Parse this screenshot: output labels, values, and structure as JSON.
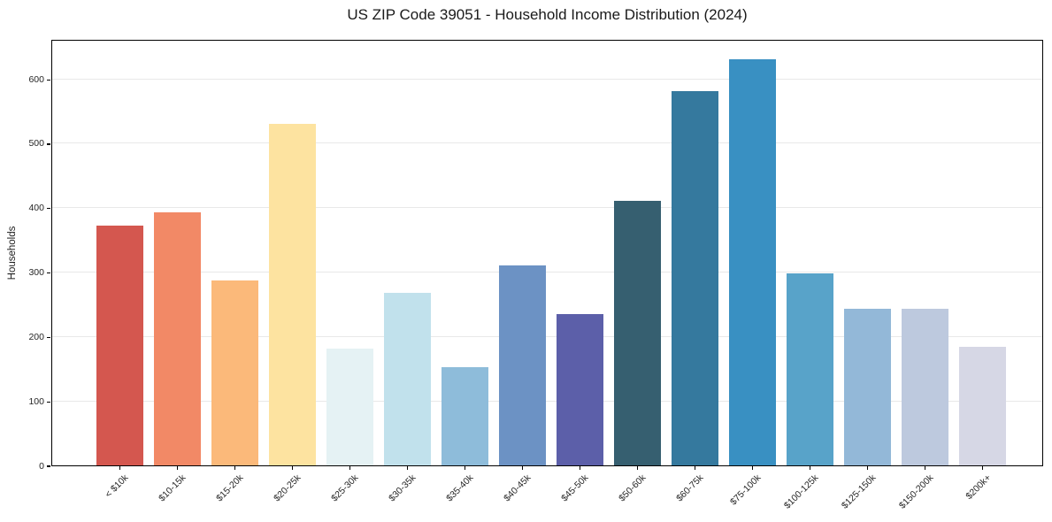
{
  "chart_data": {
    "type": "bar",
    "title": "US ZIP Code 39051 - Household Income Distribution (2024)",
    "xlabel": "",
    "ylabel": "Households",
    "categories": [
      "< $10k",
      "$10-15k",
      "$15-20k",
      "$20-25k",
      "$25-30k",
      "$30-35k",
      "$35-40k",
      "$40-45k",
      "$45-50k",
      "$50-60k",
      "$60-75k",
      "$75-100k",
      "$100-125k",
      "$125-150k",
      "$150-200k",
      "$200k+"
    ],
    "values": [
      372,
      393,
      287,
      530,
      182,
      268,
      152,
      310,
      235,
      410,
      581,
      630,
      298,
      243,
      243,
      184
    ],
    "bar_colors": [
      "#d4574f",
      "#f28966",
      "#fbb97a",
      "#fde3a0",
      "#e5f2f4",
      "#c1e1ec",
      "#8ebcda",
      "#6c92c4",
      "#5c5fa9",
      "#365f70",
      "#35799e",
      "#3990c2",
      "#58a3c9",
      "#93b8d8",
      "#bdc9de",
      "#d6d7e5"
    ],
    "yticks": [
      0,
      100,
      200,
      300,
      400,
      500,
      600
    ],
    "ylim": [
      0,
      662
    ],
    "grid": "horizontal",
    "legend": "none",
    "colors": {
      "grid_color": "#e8e8e8",
      "axis_color": "#000000",
      "tick_text_color": "#262626",
      "title_color": "#1a1a1a",
      "background": "#ffffff"
    }
  }
}
